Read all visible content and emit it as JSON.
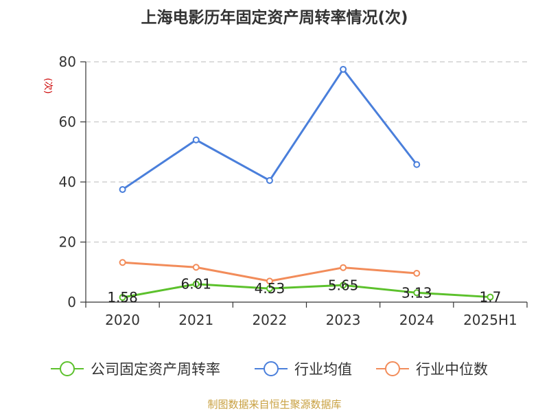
{
  "chart_data": {
    "type": "line",
    "title": "上海电影历年固定资产周转率情况(次)",
    "ylabel": "(次)",
    "categories": [
      "2020",
      "2021",
      "2022",
      "2023",
      "2024",
      "2025H1"
    ],
    "ylim": [
      0,
      80
    ],
    "yticks": [
      "0",
      "20",
      "40",
      "60",
      "80"
    ],
    "grid": true,
    "legend_position": "bottom",
    "series": [
      {
        "name": "公司固定资产周转率",
        "color": "#5cc12c",
        "values": [
          1.58,
          6.01,
          4.53,
          5.65,
          3.13,
          1.7
        ],
        "labels": [
          "1.58",
          "6.01",
          "4.53",
          "5.65",
          "3.13",
          "1.7"
        ]
      },
      {
        "name": "行业均值",
        "color": "#4a7fdb",
        "values": [
          37.5,
          54.0,
          40.5,
          77.5,
          45.8,
          null
        ]
      },
      {
        "name": "行业中位数",
        "color": "#f28c5a",
        "values": [
          13.2,
          11.6,
          7.0,
          11.5,
          9.6,
          null
        ]
      }
    ],
    "source": "制图数据来自恒生聚源数据库"
  }
}
